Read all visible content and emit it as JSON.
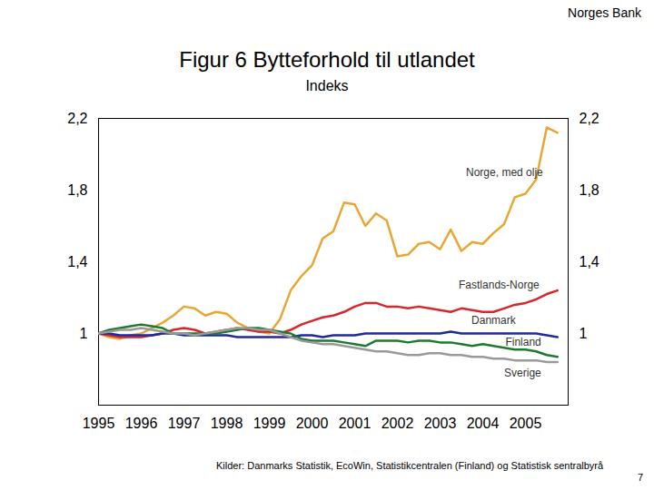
{
  "chart_data": {
    "type": "line",
    "header": "Norges Bank",
    "title": "Figur 6 Bytteforhold til utlandet",
    "subtitle": "Indeks",
    "source": "Kilder: Danmarks Statistik, EcoWin, Statistikcentralen (Finland) og Statistisk sentralbyrå",
    "page_number": 7,
    "x": [
      1995,
      1995.25,
      1995.5,
      1995.75,
      1996,
      1996.25,
      1996.5,
      1996.75,
      1997,
      1997.25,
      1997.5,
      1997.75,
      1998,
      1998.25,
      1998.5,
      1998.75,
      1999,
      1999.25,
      1999.5,
      1999.75,
      2000,
      2000.25,
      2000.5,
      2000.75,
      2001,
      2001.25,
      2001.5,
      2001.75,
      2002,
      2002.25,
      2002.5,
      2002.75,
      2003,
      2003.25,
      2003.5,
      2003.75,
      2004,
      2004.25,
      2004.5,
      2004.75,
      2005,
      2005.25,
      2005.5,
      2005.75
    ],
    "series": [
      {
        "name": "Norge, med olje",
        "color": "#e8a735",
        "values": [
          1.0,
          0.98,
          0.97,
          0.99,
          1.0,
          1.03,
          1.06,
          1.1,
          1.15,
          1.14,
          1.1,
          1.12,
          1.11,
          1.06,
          1.03,
          1.01,
          1.0,
          1.08,
          1.24,
          1.32,
          1.38,
          1.53,
          1.57,
          1.73,
          1.72,
          1.6,
          1.67,
          1.63,
          1.43,
          1.44,
          1.5,
          1.51,
          1.47,
          1.58,
          1.46,
          1.51,
          1.5,
          1.56,
          1.61,
          1.76,
          1.78,
          1.86,
          2.15,
          2.12
        ]
      },
      {
        "name": "Fastlands-Norge",
        "color": "#d9262a",
        "values": [
          1.0,
          0.99,
          0.98,
          0.98,
          0.98,
          0.99,
          1.0,
          1.02,
          1.03,
          1.02,
          1.0,
          1.01,
          1.02,
          1.03,
          1.02,
          1.01,
          1.01,
          1.0,
          1.02,
          1.05,
          1.07,
          1.09,
          1.1,
          1.12,
          1.15,
          1.17,
          1.17,
          1.15,
          1.15,
          1.14,
          1.15,
          1.14,
          1.13,
          1.12,
          1.14,
          1.13,
          1.12,
          1.12,
          1.14,
          1.16,
          1.17,
          1.19,
          1.22,
          1.24
        ]
      },
      {
        "name": "Danmark",
        "color": "#1f2a9c",
        "values": [
          1.0,
          1.0,
          0.99,
          0.99,
          0.99,
          0.99,
          1.0,
          1.0,
          0.99,
          0.99,
          0.99,
          0.99,
          0.99,
          0.98,
          0.98,
          0.98,
          0.98,
          0.98,
          0.98,
          0.99,
          0.99,
          0.98,
          0.99,
          0.99,
          0.99,
          1.0,
          1.0,
          1.0,
          1.0,
          1.0,
          1.0,
          1.0,
          1.0,
          1.01,
          1.0,
          1.0,
          1.0,
          1.0,
          1.0,
          1.0,
          1.0,
          1.0,
          0.99,
          0.98
        ]
      },
      {
        "name": "Finland",
        "color": "#1e7a2e",
        "values": [
          1.0,
          1.02,
          1.03,
          1.04,
          1.05,
          1.04,
          1.03,
          1.0,
          1.0,
          1.0,
          1.0,
          1.0,
          1.01,
          1.02,
          1.03,
          1.03,
          1.02,
          1.01,
          1.0,
          0.97,
          0.96,
          0.96,
          0.96,
          0.95,
          0.94,
          0.93,
          0.96,
          0.96,
          0.96,
          0.95,
          0.96,
          0.96,
          0.95,
          0.95,
          0.94,
          0.93,
          0.94,
          0.93,
          0.92,
          0.91,
          0.91,
          0.9,
          0.88,
          0.87
        ]
      },
      {
        "name": "Sverige",
        "color": "#9a9a9a",
        "values": [
          1.0,
          1.01,
          1.02,
          1.02,
          1.03,
          1.02,
          1.01,
          1.0,
          1.0,
          0.99,
          1.0,
          1.01,
          1.02,
          1.03,
          1.03,
          1.02,
          1.02,
          1.0,
          0.98,
          0.96,
          0.95,
          0.94,
          0.94,
          0.93,
          0.92,
          0.91,
          0.9,
          0.9,
          0.89,
          0.88,
          0.88,
          0.89,
          0.89,
          0.88,
          0.88,
          0.87,
          0.87,
          0.86,
          0.86,
          0.85,
          0.85,
          0.85,
          0.84,
          0.84
        ]
      }
    ],
    "xlim": [
      1995,
      2006
    ],
    "xticks": [
      1995,
      1996,
      1997,
      1998,
      1999,
      2000,
      2001,
      2002,
      2003,
      2004,
      2005
    ],
    "ylim": [
      0.6,
      2.2
    ],
    "yticks": [
      1,
      {
        "value": 1.4,
        "label": "1,4"
      },
      {
        "value": 1.8,
        "label": "1,8"
      },
      {
        "value": 2.2,
        "label": "2,2"
      }
    ],
    "grid": false
  }
}
